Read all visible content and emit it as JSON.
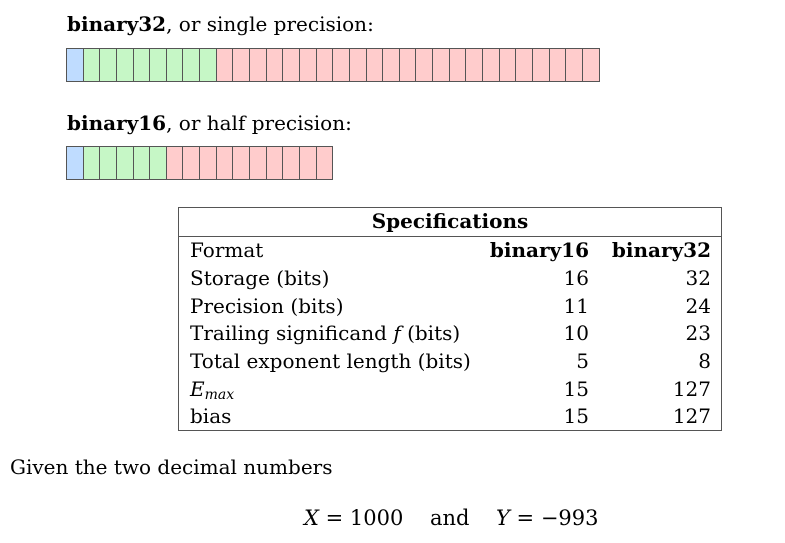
{
  "binary32_heading": {
    "bold": "binary32",
    "rest": ", or single precision:"
  },
  "binary16_heading": {
    "bold": "binary16",
    "rest": ", or half precision:"
  },
  "bit_layouts": {
    "binary32": {
      "sign_bits": 1,
      "exponent_bits": 8,
      "fraction_bits": 23
    },
    "binary16": {
      "sign_bits": 1,
      "exponent_bits": 5,
      "fraction_bits": 10
    }
  },
  "colors": {
    "sign": "#bfdcff",
    "exponent": "#c6f7c6",
    "fraction": "#ffcccc"
  },
  "spec_table": {
    "title": "Specifications",
    "header": {
      "label": "Format",
      "c1": "binary16",
      "c2": "binary32"
    },
    "rows": [
      {
        "label": "Storage (bits)",
        "c1": "16",
        "c2": "32"
      },
      {
        "label": "Precision (bits)",
        "c1": "11",
        "c2": "24"
      },
      {
        "label_pre": "Trailing significand ",
        "label_var": "f",
        "label_post": " (bits)",
        "c1": "10",
        "c2": "23"
      },
      {
        "label": "Total exponent length (bits)",
        "c1": "5",
        "c2": "8"
      },
      {
        "label_base": "E",
        "label_sub": "max",
        "c1": "15",
        "c2": "127"
      },
      {
        "label": "bias",
        "c1": "15",
        "c2": "127"
      }
    ]
  },
  "intro_text": "Given the two decimal numbers",
  "equation": {
    "x_var": "X",
    "x_eq": " = 1000",
    "conj": "and",
    "y_var": "Y",
    "y_eq": " = −993"
  }
}
